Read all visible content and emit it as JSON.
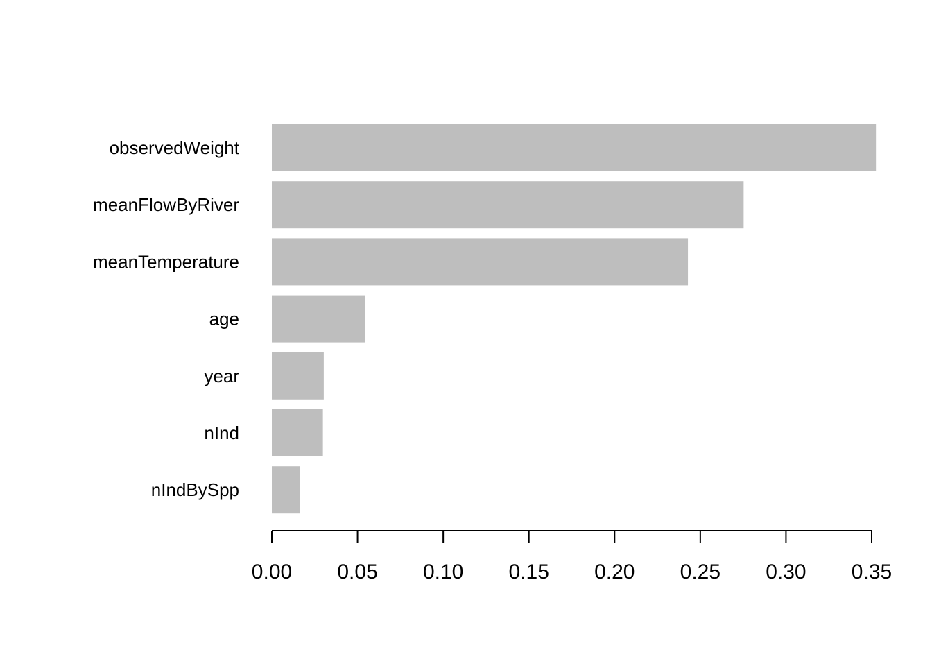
{
  "chart_data": {
    "type": "bar",
    "orientation": "horizontal",
    "categories": [
      "observedWeight",
      "meanFlowByRiver",
      "meanTemperature",
      "age",
      "year",
      "nInd",
      "nIndBySpp"
    ],
    "values": [
      0.3525,
      0.2753,
      0.2428,
      0.0543,
      0.0303,
      0.0298,
      0.0163
    ],
    "title": "",
    "xlabel": "",
    "ylabel": "",
    "xlim": [
      0,
      0.35
    ],
    "x_ticks": [
      0,
      0.05,
      0.1,
      0.15,
      0.2,
      0.25,
      0.3,
      0.35
    ],
    "x_tick_labels": [
      "0.00",
      "0.05",
      "0.10",
      "0.15",
      "0.20",
      "0.25",
      "0.30",
      "0.35"
    ],
    "bar_color": "#bebebe",
    "grid": false,
    "legend": "none"
  }
}
